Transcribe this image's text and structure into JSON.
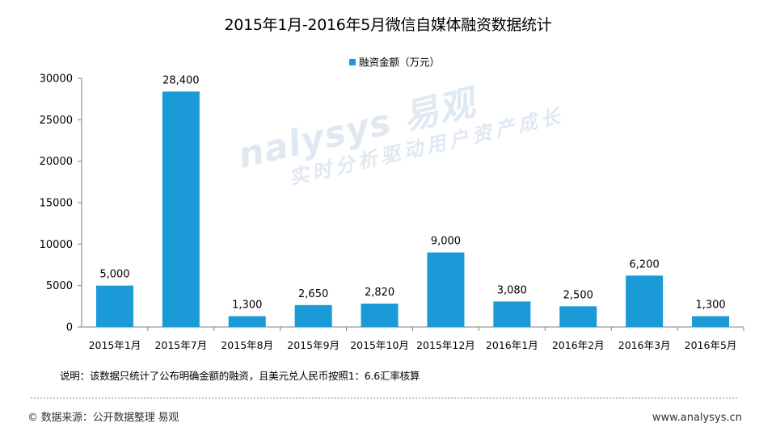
{
  "title": "2015年1月-2016年5月微信自媒体融资数据统计",
  "note": "说明：该数据只统计了公布明确金额的融资，且美元兑人民币按照1：6.6汇率核算",
  "footer": {
    "source": "© 数据来源：公开数据整理 易观",
    "website": "www.analysys.cn"
  },
  "watermark": {
    "brand": "nalysys 易观",
    "slogan": "实时分析驱动用户资产成长"
  },
  "colors": {
    "bar": "#1a9ad6",
    "axis": "#7f7f7f"
  },
  "chart_data": {
    "type": "bar",
    "title": "2015年1月-2016年5月微信自媒体融资数据统计",
    "categories": [
      "2015年1月",
      "2015年7月",
      "2015年8月",
      "2015年9月",
      "2015年10月",
      "2015年12月",
      "2016年1月",
      "2016年2月",
      "2016年3月",
      "2016年5月"
    ],
    "series": [
      {
        "name": "融资金额（万元）",
        "values": [
          5000,
          28400,
          1300,
          2650,
          2820,
          9000,
          3080,
          2500,
          6200,
          1300
        ],
        "labels": [
          "5,000",
          "28,400",
          "1,300",
          "2,650",
          "2,820",
          "9,000",
          "3,080",
          "2,500",
          "6,200",
          "1,300"
        ]
      }
    ],
    "ylim": [
      0,
      30000
    ],
    "yticks": [
      0,
      5000,
      10000,
      15000,
      20000,
      25000,
      30000
    ],
    "legend": "top-center",
    "grid": false
  }
}
